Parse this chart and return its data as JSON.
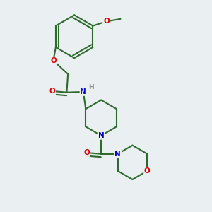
{
  "background_color": "#eaeff2",
  "bond_color": "#2d6b2d",
  "atom_colors": {
    "O": "#dd0000",
    "N": "#0000cc",
    "H": "#888888",
    "C": "#2d6b2d"
  },
  "figsize": [
    3.0,
    3.0
  ],
  "dpi": 100
}
